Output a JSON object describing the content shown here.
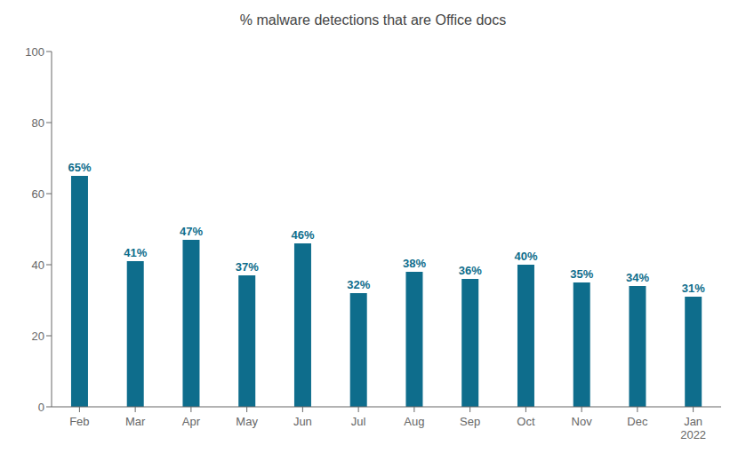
{
  "chart_data": {
    "type": "bar",
    "title": "% malware detections that are Office docs",
    "categories": [
      "Feb",
      "Mar",
      "Apr",
      "May",
      "Jun",
      "Jul",
      "Aug",
      "Sep",
      "Oct",
      "Nov",
      "Dec",
      "Jan\n2022"
    ],
    "values": [
      65,
      41,
      47,
      37,
      46,
      32,
      38,
      36,
      40,
      35,
      34,
      31
    ],
    "value_labels": [
      "65%",
      "41%",
      "47%",
      "37%",
      "46%",
      "32%",
      "38%",
      "36%",
      "40%",
      "35%",
      "34%",
      "31%"
    ],
    "data_labels": true,
    "color": "#0e6d8c",
    "ylim": [
      0,
      100
    ],
    "yticks": [
      0,
      20,
      40,
      60,
      80,
      100
    ],
    "grid": false
  }
}
